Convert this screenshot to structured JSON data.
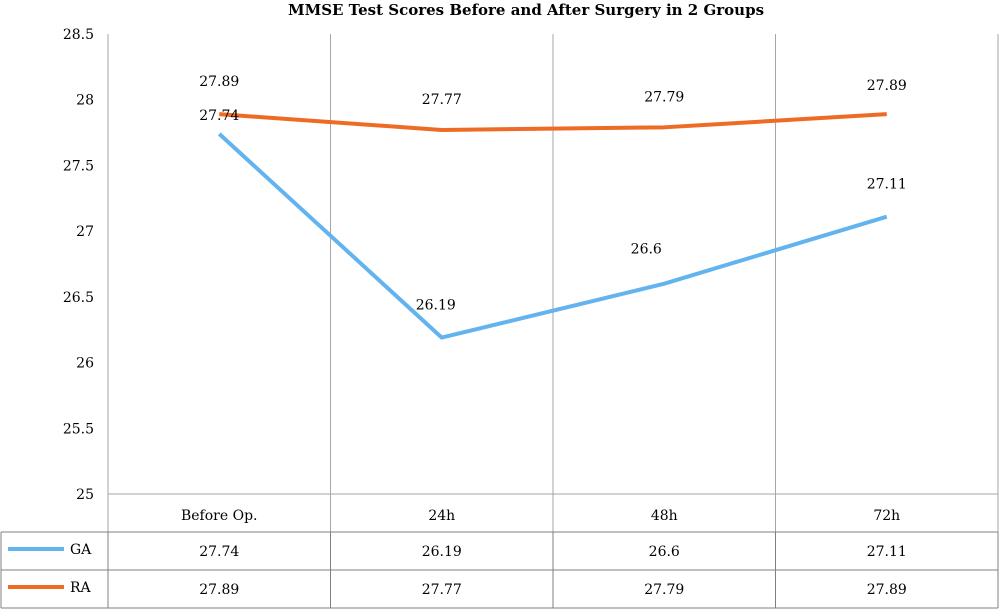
{
  "chart_data": {
    "type": "line",
    "title": "MMSE Test Scores Before and After Surgery in 2 Groups",
    "xlabel": "",
    "ylabel": "",
    "categories": [
      "Before Op.",
      "24h",
      "48h",
      "72h"
    ],
    "ylim": [
      25,
      28.5
    ],
    "yticks": [
      "25",
      "25.5",
      "26",
      "26.5",
      "27",
      "27.5",
      "28",
      "28.5"
    ],
    "grid": "vertical category lines",
    "legend": "data table below chart",
    "series": [
      {
        "name": "GA",
        "values": [
          27.74,
          26.19,
          26.6,
          27.11
        ],
        "labels": [
          "27.74",
          "26.19",
          "26.6",
          "27.11"
        ],
        "color": "#63b3ef"
      },
      {
        "name": "RA",
        "values": [
          27.89,
          27.77,
          27.79,
          27.89
        ],
        "labels": [
          "27.89",
          "27.77",
          "27.79",
          "27.89"
        ],
        "color": "#ee6b25"
      }
    ]
  }
}
